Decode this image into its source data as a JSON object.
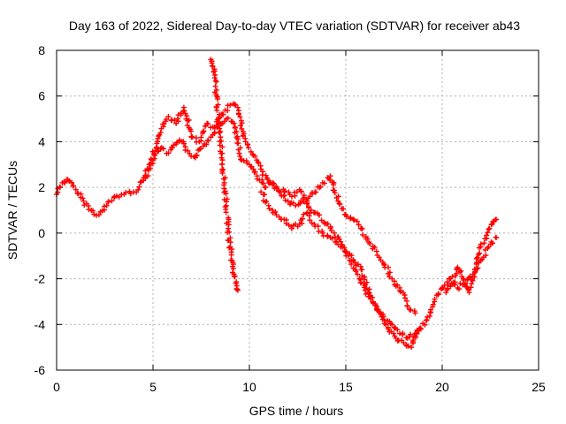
{
  "chart_data": {
    "type": "scatter",
    "title": "Day 163 of 2022, Sidereal Day-to-day VTEC variation (SDTVAR) for receiver ab43",
    "xlabel": "GPS time / hours",
    "ylabel": "SDTVAR / TECUs",
    "xlim": [
      0,
      25
    ],
    "ylim": [
      -6,
      8
    ],
    "x_ticks": [
      0,
      5,
      10,
      15,
      20,
      25
    ],
    "y_ticks": [
      -6,
      -4,
      -2,
      0,
      2,
      4,
      6,
      8
    ],
    "grid": true,
    "marker": "+",
    "colors": {
      "series": "#ff0000",
      "axes": "#000000",
      "grid": "#b0b0b0"
    },
    "series": [
      {
        "name": "trace-main",
        "x": [
          0.0,
          0.3,
          0.6,
          1.0,
          1.4,
          1.8,
          2.2,
          2.6,
          3.0,
          3.5,
          4.0,
          4.5,
          4.8,
          5.1,
          5.4,
          5.8,
          6.2,
          6.5,
          6.8,
          7.2,
          7.6,
          8.0,
          8.4,
          8.8,
          9.2,
          9.6,
          10.0,
          10.4,
          10.8,
          11.2,
          11.6,
          12.0,
          12.4,
          12.8,
          13.2,
          13.6,
          14.0,
          14.4,
          14.8,
          15.2,
          15.6,
          16.0,
          16.4,
          16.8,
          17.2,
          17.6,
          18.0,
          18.4,
          18.8,
          19.2,
          19.6,
          20.0,
          20.4,
          20.8,
          21.2,
          21.6,
          22.0,
          22.4,
          22.8
        ],
        "y": [
          1.7,
          2.2,
          2.3,
          1.9,
          1.4,
          1.0,
          0.8,
          1.2,
          1.6,
          1.7,
          1.8,
          2.3,
          3.0,
          3.6,
          3.7,
          3.5,
          3.9,
          4.0,
          3.6,
          3.3,
          3.8,
          4.2,
          4.8,
          5.0,
          4.8,
          3.2,
          3.0,
          2.5,
          2.0,
          2.2,
          1.8,
          1.4,
          1.2,
          1.5,
          1.0,
          0.8,
          0.4,
          0.0,
          -0.5,
          -1.2,
          -1.8,
          -2.5,
          -3.0,
          -3.5,
          -4.2,
          -4.6,
          -4.8,
          -5.0,
          -4.2,
          -3.8,
          -3.0,
          -2.4,
          -2.0,
          -2.4,
          -2.2,
          -1.8,
          -1.2,
          -0.6,
          -0.2
        ]
      },
      {
        "name": "trace-upper-envelope",
        "x": [
          4.6,
          5.0,
          5.4,
          5.8,
          6.2,
          6.6,
          7.0,
          7.4,
          7.8,
          8.2,
          8.6,
          9.0,
          9.4,
          9.8,
          10.2,
          10.6,
          11.0,
          11.4,
          11.8,
          12.2,
          12.6,
          13.0,
          13.4,
          13.8,
          14.2,
          14.6,
          15.0,
          15.4,
          15.8,
          16.2,
          16.6,
          17.0,
          17.4,
          17.8,
          18.2,
          18.6
        ],
        "y": [
          2.4,
          3.2,
          4.4,
          5.1,
          4.8,
          5.5,
          4.2,
          4.0,
          4.8,
          4.6,
          5.2,
          5.6,
          5.5,
          4.0,
          3.4,
          2.8,
          2.2,
          2.0,
          1.8,
          1.6,
          1.9,
          1.4,
          1.8,
          2.2,
          2.5,
          1.4,
          0.8,
          0.6,
          0.2,
          -0.4,
          -0.8,
          -1.4,
          -2.0,
          -2.4,
          -3.2,
          -3.5
        ]
      },
      {
        "name": "trace-lower-envelope",
        "x": [
          10.6,
          11.0,
          11.4,
          11.8,
          12.2,
          12.6,
          13.0,
          13.4,
          13.8,
          14.2,
          14.6,
          15.0,
          15.4,
          15.8,
          16.2,
          16.6,
          17.0,
          17.4,
          17.8,
          18.2,
          18.6,
          18.9
        ],
        "y": [
          1.8,
          1.2,
          0.8,
          0.6,
          0.2,
          0.4,
          0.9,
          0.3,
          0.0,
          -0.2,
          -0.5,
          -0.8,
          -1.2,
          -1.6,
          -2.6,
          -3.2,
          -3.8,
          -4.0,
          -4.4,
          -4.6,
          -4.4,
          -4.2
        ]
      },
      {
        "name": "trace-spike",
        "x": [
          8.0,
          8.1,
          8.2,
          8.3,
          8.4,
          8.5,
          8.6,
          8.7,
          8.8,
          8.9,
          9.0,
          9.1,
          9.2,
          9.3,
          9.4
        ],
        "y": [
          7.6,
          7.3,
          6.8,
          6.0,
          5.0,
          4.2,
          3.2,
          2.2,
          1.2,
          0.2,
          -0.6,
          -1.2,
          -1.8,
          -2.2,
          -2.5
        ]
      },
      {
        "name": "trace-final-burst",
        "x": [
          20.2,
          20.5,
          20.8,
          21.1,
          21.4,
          21.7,
          22.0,
          22.3,
          22.6,
          22.8
        ],
        "y": [
          -2.6,
          -2.2,
          -1.5,
          -2.0,
          -2.6,
          -1.6,
          -0.6,
          -0.1,
          0.4,
          0.6
        ]
      }
    ]
  }
}
